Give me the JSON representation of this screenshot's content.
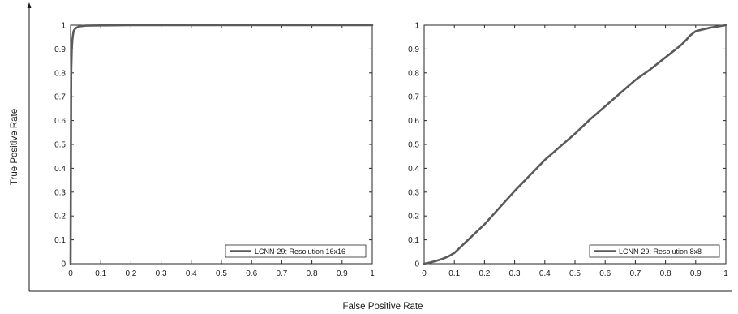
{
  "figure": {
    "xlabel": "False Positive Rate",
    "ylabel": "True Positive Rate"
  },
  "chart_data": [
    {
      "type": "line",
      "title": "",
      "xlim": [
        0,
        1
      ],
      "ylim": [
        0,
        1
      ],
      "x_ticks": [
        "0",
        "0.1",
        "0.2",
        "0.3",
        "0.4",
        "0.5",
        "0.6",
        "0.7",
        "0.8",
        "0.9",
        "1"
      ],
      "y_ticks": [
        "0",
        "0.1",
        "0.2",
        "0.3",
        "0.4",
        "0.5",
        "0.6",
        "0.7",
        "0.8",
        "0.9",
        "1"
      ],
      "grid": false,
      "legend_position": "bottom-right",
      "series": [
        {
          "name": "LCNN-29: Resolution 16x16",
          "color": "#5a5a5a",
          "x": [
            0,
            0.002,
            0.004,
            0.006,
            0.008,
            0.01,
            0.015,
            0.02,
            0.03,
            0.05,
            0.1,
            0.2,
            0.5,
            1
          ],
          "y": [
            0,
            0.8,
            0.9,
            0.94,
            0.96,
            0.975,
            0.985,
            0.99,
            0.995,
            0.998,
            0.999,
            1,
            1,
            1
          ]
        }
      ]
    },
    {
      "type": "line",
      "title": "",
      "xlim": [
        0,
        1
      ],
      "ylim": [
        0,
        1
      ],
      "x_ticks": [
        "0",
        "0.1",
        "0.2",
        "0.3",
        "0.4",
        "0.5",
        "0.6",
        "0.7",
        "0.8",
        "0.9",
        "1"
      ],
      "y_ticks": [
        "0",
        "0.1",
        "0.2",
        "0.3",
        "0.4",
        "0.5",
        "0.6",
        "0.7",
        "0.8",
        "0.9",
        "1"
      ],
      "grid": false,
      "legend_position": "bottom-right",
      "series": [
        {
          "name": "LCNN-29: Resolution 8x8",
          "color": "#5a5a5a",
          "x": [
            0,
            0.02,
            0.04,
            0.06,
            0.08,
            0.1,
            0.15,
            0.2,
            0.25,
            0.3,
            0.35,
            0.4,
            0.45,
            0.5,
            0.55,
            0.6,
            0.65,
            0.7,
            0.75,
            0.8,
            0.85,
            0.87,
            0.88,
            0.9,
            0.95,
            1
          ],
          "y": [
            0,
            0.005,
            0.012,
            0.02,
            0.03,
            0.045,
            0.105,
            0.165,
            0.235,
            0.305,
            0.37,
            0.435,
            0.49,
            0.545,
            0.605,
            0.66,
            0.715,
            0.77,
            0.815,
            0.865,
            0.915,
            0.94,
            0.955,
            0.975,
            0.99,
            1
          ]
        }
      ]
    }
  ]
}
